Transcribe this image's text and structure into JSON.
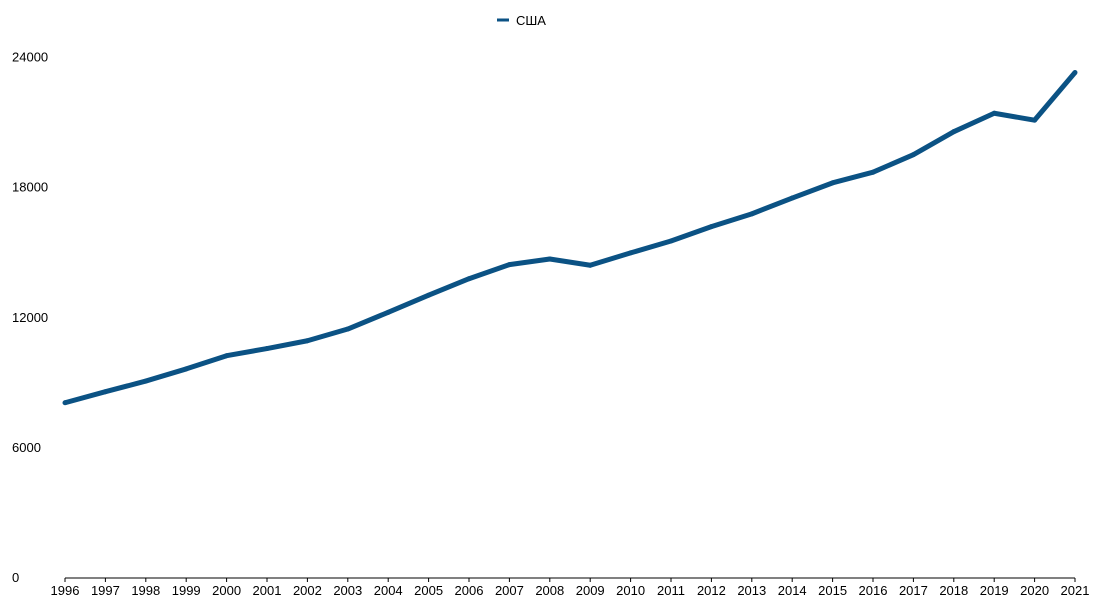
{
  "chart_data": {
    "type": "line",
    "x": [
      1996,
      1997,
      1998,
      1999,
      2000,
      2001,
      2002,
      2003,
      2004,
      2005,
      2006,
      2007,
      2008,
      2009,
      2010,
      2011,
      2012,
      2013,
      2014,
      2015,
      2016,
      2017,
      2018,
      2019,
      2020,
      2021
    ],
    "x_tick_labels": [
      "1996",
      "1997",
      "1998",
      "1999",
      "2000",
      "2001",
      "2002",
      "2003",
      "2004",
      "2005",
      "2006",
      "2007",
      "2008",
      "2009",
      "2010",
      "2011",
      "2012",
      "2013",
      "2014",
      "2015",
      "2016",
      "2017",
      "2018",
      "2019",
      "2020",
      "2021"
    ],
    "series": [
      {
        "name": "США",
        "color": "#0b5284",
        "values": [
          8080,
          8590,
          9080,
          9640,
          10250,
          10580,
          10940,
          11480,
          12250,
          13040,
          13800,
          14450,
          14710,
          14420,
          14990,
          15540,
          16200,
          16790,
          17520,
          18220,
          18710,
          19520,
          20580,
          21430,
          21110,
          23310
        ]
      }
    ],
    "ylim": [
      0,
      24000
    ],
    "y_ticks": [
      0,
      6000,
      12000,
      18000,
      24000
    ],
    "y_tick_labels": [
      "0",
      "6000",
      "12000",
      "18000",
      "24000"
    ],
    "title": "",
    "xlabel": "",
    "ylabel": "",
    "legend_position": "top-center",
    "grid": false
  }
}
